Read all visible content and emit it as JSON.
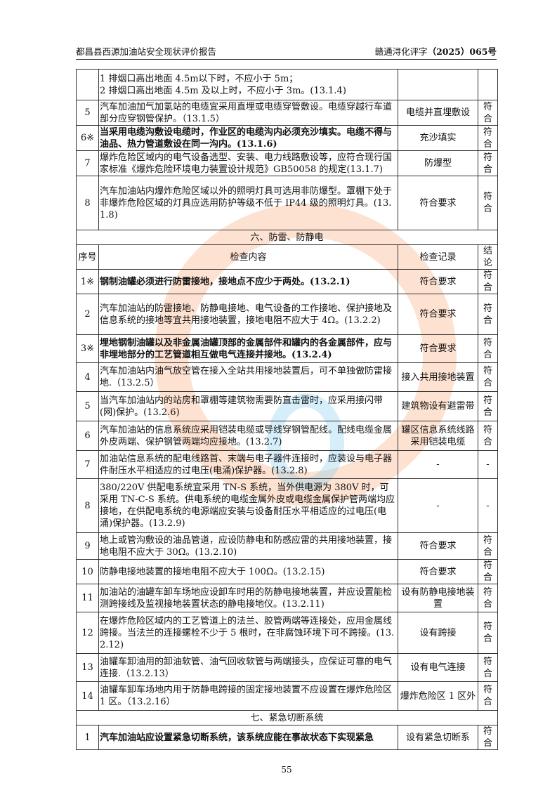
{
  "header": {
    "title": "都昌县西源加油站安全现状评价报告",
    "doc_no_prefix": "赣通浔化评字",
    "doc_no_bold": "（2025）065",
    "doc_no_suffix": "号"
  },
  "rows_top": [
    {
      "n": "",
      "c": "1 排烟口高出地面 4.5m以下时，不应小于 5m；\n2 排烟口高出地面 4.5m 及以上时，不应小于 3m。(13.1.4)",
      "r": "",
      "k": "",
      "h": 44
    },
    {
      "n": "5",
      "c": "汽车加油加气加氢站的电缆宜采用直埋或电缆穿管敷设。电缆穿越行车道部分应穿钢管保护。（13.1.5）",
      "r": "电缆并直埋敷设",
      "k": "符合",
      "h": 36
    },
    {
      "n": "6※",
      "c": "当采用电缆沟敷设电缆时，作业区的电缆沟内必须充沙填实。电缆不得与油品、热力管道敷设在同一沟内。(13.1.6)",
      "r": "充沙填实",
      "k": "符合",
      "h": 36,
      "bold": true
    },
    {
      "n": "7",
      "c": "爆炸危险区域内的电气设备选型、安装、电力线路敷设等，应符合现行国家标准《爆炸危险环境电力装置设计规范》GB50058 的规定(13.1.7)",
      "r": "防爆型",
      "k": "符合",
      "h": 36
    },
    {
      "n": "8",
      "c": "汽车加油站内爆炸危险区域以外的照明灯具可选用非防爆型。罩棚下处于非爆炸危险区域的灯具应选用防护等级不低于 IP44 级的照明灯具。(13.1.8)",
      "r": "符合要求",
      "k": "符合",
      "h": 77
    }
  ],
  "section6": {
    "title": "六、防雷、防静电",
    "headers": [
      "序号",
      "检查内容",
      "检查记录",
      "结论"
    ]
  },
  "rows6": [
    {
      "n": "1※",
      "c": "钢制油罐必须进行防雷接地，接地点不应少于两处。(13.2.1)",
      "r": "符合要求",
      "k": "符合",
      "h": 23,
      "bold": true
    },
    {
      "n": "2",
      "c": "汽车加油站的防雷接地、防静电接地、电气设备的工作接地、保护接地及信息系统的接地等宜共用接地装置，接地电阻不应大于 4Ω。(13.2.2)",
      "r": "符合要求",
      "k": "符合",
      "h": 58
    },
    {
      "n": "3※",
      "c": "埋地钢制油罐以及非金属油罐顶部的金属部件和罐内的各金属部件，应与非埋地部分的工艺管道相互做电气连接并接地。(13.2.4)",
      "r": "符合要求",
      "k": "符合",
      "h": 40,
      "bold": true
    },
    {
      "n": "4",
      "c": "汽车加油站内油气放空管在接入全站共用接地装置后，可不单独做防雷接地.（13.2.5）",
      "r": "接入共用接地装置",
      "k": "符合",
      "h": 41
    },
    {
      "n": "5",
      "c": "当汽车加油站内的站房和罩棚等建筑物需要防直击雷时，应采用接闪带(网)保护。(13.2.6)",
      "r": "建筑物设有避雷带",
      "k": "符合",
      "h": 42
    },
    {
      "n": "6",
      "c": "汽车加油站的信息系统应采用铠装电缆或导线穿钢管配线。配线电缆金属外皮两端、保护钢管两端均应接地。(13.2.7)",
      "r": "罐区信息系统线路采用铠装电缆",
      "k": "符合",
      "h": 42
    },
    {
      "n": "7",
      "c": "加油站信息系统的配电线路首、末端与电子器件连接时，应装设与电子器件耐压水平相适应的过电压(电涌)保护器。(13.2.8)",
      "r": "-",
      "k": "-",
      "h": 40
    },
    {
      "n": "8",
      "c": "380/220V 供配电系统宜采用 TN-S 系统，当外供电源为 380V 时，可采用 TN-C-S 系统。供电系统的电缆金属外皮或电缆金属保护管两端均应接地，在供配电系统的电源端应安装与设备耐压水平相适应的过电压(电涌)保护器。(13.2.9)",
      "r": "-",
      "k": "-",
      "h": 77
    },
    {
      "n": "9",
      "c": "地上或管沟敷设的油品管道，应设防静电和防感应雷的共用接地装置，接地电阻不应大于 30Ω。(13.2.10)",
      "r": "符合要求",
      "k": "符合",
      "h": 38
    },
    {
      "n": "10",
      "c": "防静电接地装置的接地电阻不应大于 100Ω。(13.2.15)",
      "r": "符合要求",
      "k": "符合",
      "h": 24
    },
    {
      "n": "11",
      "c": "加油站的油罐车卸车场地应设卸车时用的防静电接地装置，并应设置能检测跨接线及监视接地装置状态的静电接地仪。(13.2.11)",
      "r": "设有防静电接地装置",
      "k": "符合",
      "h": 40
    },
    {
      "n": "12",
      "c": "在爆炸危险区域内的工艺管道上的法兰、胶管两端等连接处，应用金属线跨接。当法兰的连接螺栓不少于 5 根时，在非腐蚀环境下可不跨接。(13.2.12)",
      "r": "设有跨接",
      "k": "符合",
      "h": 59
    },
    {
      "n": "13",
      "c": "油罐车卸油用的卸油软管、油气回收软管与两端接头，应保证可靠的电气连接.（13.2.13）",
      "r": "设有电气连接",
      "k": "符合",
      "h": 40
    },
    {
      "n": "14",
      "c": "油罐车卸车场地内用于防静电跨接的固定接地装置不应设置在爆炸危险区 1 区。（13.2.16）",
      "r": "爆炸危险区 1 区外",
      "k": "符合",
      "h": 41
    }
  ],
  "section7": {
    "title": "七、紧急切断系统"
  },
  "rows7": [
    {
      "n": "1",
      "c": "汽车加油站应设置紧急切断系统，该系统应能在事故状态下实现紧急",
      "r": "设有紧急切断系",
      "k": "符合",
      "h": 22,
      "bold": true
    }
  ],
  "page_number": "55",
  "colors": {
    "watermark_orange": "#f8a070",
    "watermark_blue": "#80c8f0"
  }
}
